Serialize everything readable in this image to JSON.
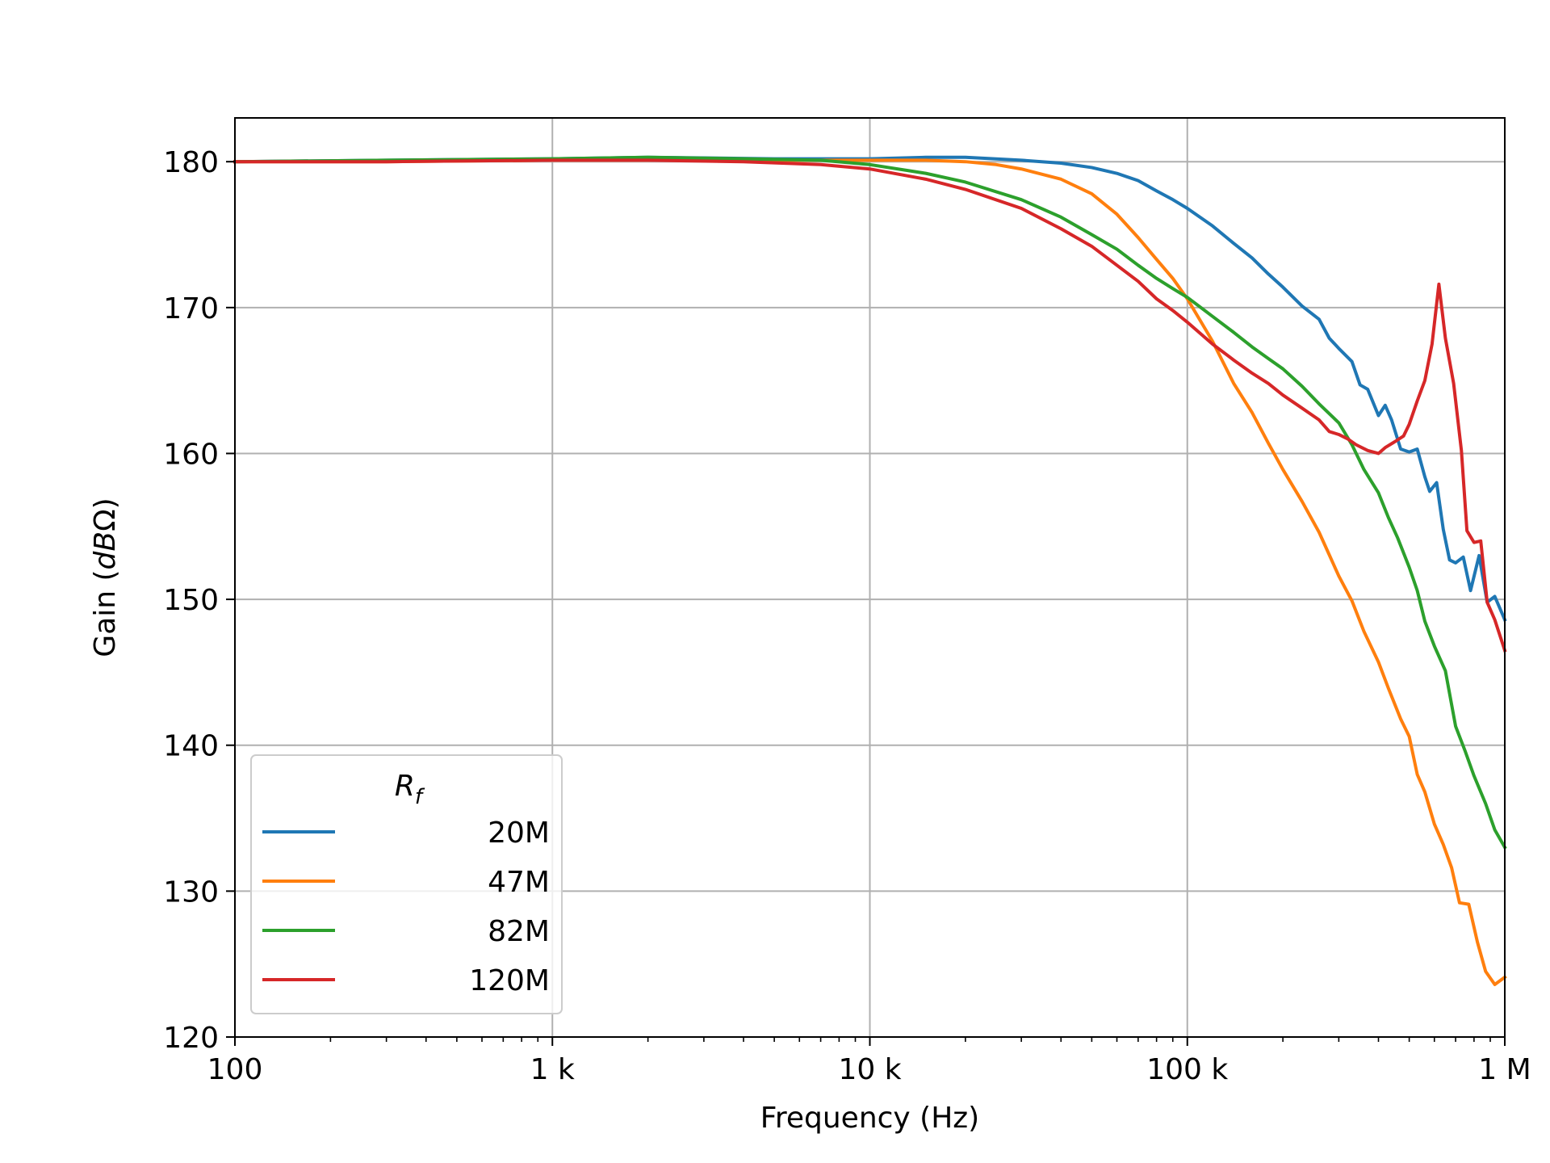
{
  "chart_data": {
    "type": "line",
    "xlabel": "Frequency (Hz)",
    "ylabel": "Gain (dBΩ)",
    "ylabel_parts": {
      "prefix": "Gain (",
      "unit_italic": "dB",
      "unit_tail": "Ω)"
    },
    "xscale": "log",
    "xlim": [
      100,
      1000000
    ],
    "ylim": [
      120,
      183
    ],
    "grid": true,
    "xticks": [
      {
        "value": 100,
        "label": "100"
      },
      {
        "value": 1000,
        "label": "1 k"
      },
      {
        "value": 10000,
        "label": "10 k"
      },
      {
        "value": 100000,
        "label": "100 k"
      },
      {
        "value": 1000000,
        "label": "1 M"
      }
    ],
    "yticks": [
      {
        "value": 120,
        "label": "120"
      },
      {
        "value": 130,
        "label": "130"
      },
      {
        "value": 140,
        "label": "140"
      },
      {
        "value": 150,
        "label": "150"
      },
      {
        "value": 160,
        "label": "160"
      },
      {
        "value": 170,
        "label": "170"
      },
      {
        "value": 180,
        "label": "180"
      }
    ],
    "legend": {
      "title_base": "R",
      "title_sub": "f",
      "placement": "lower-left"
    },
    "series": [
      {
        "name": "20M",
        "color": "#1f77b4",
        "points": [
          [
            100,
            180.0
          ],
          [
            300,
            180.1
          ],
          [
            1000,
            180.2
          ],
          [
            2000,
            180.3
          ],
          [
            5000,
            180.2
          ],
          [
            10000,
            180.2
          ],
          [
            15000,
            180.3
          ],
          [
            20000,
            180.3
          ],
          [
            30000,
            180.1
          ],
          [
            40000,
            179.9
          ],
          [
            50000,
            179.6
          ],
          [
            60000,
            179.2
          ],
          [
            70000,
            178.7
          ],
          [
            80000,
            178.0
          ],
          [
            90000,
            177.4
          ],
          [
            100000,
            176.8
          ],
          [
            120000,
            175.6
          ],
          [
            140000,
            174.4
          ],
          [
            160000,
            173.4
          ],
          [
            180000,
            172.3
          ],
          [
            200000,
            171.4
          ],
          [
            230000,
            170.1
          ],
          [
            260000,
            169.2
          ],
          [
            280000,
            167.9
          ],
          [
            300000,
            167.2
          ],
          [
            330000,
            166.3
          ],
          [
            350000,
            164.7
          ],
          [
            370000,
            164.4
          ],
          [
            400000,
            162.6
          ],
          [
            420000,
            163.3
          ],
          [
            440000,
            162.3
          ],
          [
            470000,
            160.3
          ],
          [
            500000,
            160.1
          ],
          [
            530000,
            160.3
          ],
          [
            560000,
            158.4
          ],
          [
            580000,
            157.4
          ],
          [
            610000,
            158.0
          ],
          [
            640000,
            154.8
          ],
          [
            670000,
            152.7
          ],
          [
            700000,
            152.5
          ],
          [
            740000,
            152.9
          ],
          [
            780000,
            150.6
          ],
          [
            830000,
            153.0
          ],
          [
            880000,
            149.8
          ],
          [
            930000,
            150.2
          ],
          [
            1000000,
            148.6
          ]
        ]
      },
      {
        "name": "47M",
        "color": "#ff7f0e",
        "points": [
          [
            100,
            180.0
          ],
          [
            300,
            180.0
          ],
          [
            1000,
            180.1
          ],
          [
            2000,
            180.1
          ],
          [
            5000,
            180.1
          ],
          [
            10000,
            180.1
          ],
          [
            15000,
            180.1
          ],
          [
            20000,
            180.0
          ],
          [
            25000,
            179.8
          ],
          [
            30000,
            179.5
          ],
          [
            40000,
            178.8
          ],
          [
            50000,
            177.8
          ],
          [
            60000,
            176.4
          ],
          [
            70000,
            174.8
          ],
          [
            80000,
            173.3
          ],
          [
            90000,
            172.0
          ],
          [
            100000,
            170.6
          ],
          [
            120000,
            167.7
          ],
          [
            140000,
            164.8
          ],
          [
            160000,
            162.8
          ],
          [
            180000,
            160.7
          ],
          [
            200000,
            158.9
          ],
          [
            230000,
            156.7
          ],
          [
            260000,
            154.6
          ],
          [
            300000,
            151.6
          ],
          [
            330000,
            149.9
          ],
          [
            360000,
            147.8
          ],
          [
            400000,
            145.7
          ],
          [
            430000,
            143.9
          ],
          [
            470000,
            141.8
          ],
          [
            500000,
            140.6
          ],
          [
            530000,
            138.0
          ],
          [
            560000,
            136.8
          ],
          [
            600000,
            134.6
          ],
          [
            640000,
            133.2
          ],
          [
            680000,
            131.6
          ],
          [
            720000,
            129.2
          ],
          [
            770000,
            129.1
          ],
          [
            820000,
            126.5
          ],
          [
            870000,
            124.5
          ],
          [
            930000,
            123.6
          ],
          [
            1000000,
            124.1
          ]
        ]
      },
      {
        "name": "82M",
        "color": "#2ca02c",
        "points": [
          [
            100,
            180.0
          ],
          [
            300,
            180.1
          ],
          [
            1000,
            180.2
          ],
          [
            2000,
            180.3
          ],
          [
            4000,
            180.2
          ],
          [
            7000,
            180.1
          ],
          [
            10000,
            179.8
          ],
          [
            15000,
            179.2
          ],
          [
            20000,
            178.6
          ],
          [
            30000,
            177.4
          ],
          [
            40000,
            176.2
          ],
          [
            50000,
            175.0
          ],
          [
            60000,
            174.0
          ],
          [
            70000,
            172.9
          ],
          [
            80000,
            172.0
          ],
          [
            90000,
            171.3
          ],
          [
            100000,
            170.7
          ],
          [
            120000,
            169.4
          ],
          [
            140000,
            168.3
          ],
          [
            160000,
            167.3
          ],
          [
            180000,
            166.5
          ],
          [
            200000,
            165.8
          ],
          [
            230000,
            164.6
          ],
          [
            260000,
            163.4
          ],
          [
            300000,
            162.1
          ],
          [
            330000,
            160.6
          ],
          [
            360000,
            158.9
          ],
          [
            400000,
            157.3
          ],
          [
            430000,
            155.6
          ],
          [
            460000,
            154.2
          ],
          [
            500000,
            152.2
          ],
          [
            530000,
            150.6
          ],
          [
            560000,
            148.5
          ],
          [
            600000,
            146.8
          ],
          [
            650000,
            145.1
          ],
          [
            700000,
            141.3
          ],
          [
            750000,
            139.6
          ],
          [
            800000,
            137.9
          ],
          [
            870000,
            136.0
          ],
          [
            930000,
            134.2
          ],
          [
            1000000,
            133.0
          ]
        ]
      },
      {
        "name": "120M",
        "color": "#d62728",
        "points": [
          [
            100,
            180.0
          ],
          [
            300,
            180.0
          ],
          [
            1000,
            180.1
          ],
          [
            2000,
            180.1
          ],
          [
            4000,
            180.0
          ],
          [
            7000,
            179.8
          ],
          [
            10000,
            179.5
          ],
          [
            15000,
            178.8
          ],
          [
            20000,
            178.1
          ],
          [
            30000,
            176.8
          ],
          [
            40000,
            175.4
          ],
          [
            50000,
            174.2
          ],
          [
            60000,
            172.9
          ],
          [
            70000,
            171.8
          ],
          [
            80000,
            170.6
          ],
          [
            90000,
            169.8
          ],
          [
            100000,
            169.0
          ],
          [
            120000,
            167.5
          ],
          [
            140000,
            166.4
          ],
          [
            160000,
            165.5
          ],
          [
            180000,
            164.8
          ],
          [
            200000,
            164.0
          ],
          [
            230000,
            163.1
          ],
          [
            260000,
            162.3
          ],
          [
            280000,
            161.5
          ],
          [
            300000,
            161.3
          ],
          [
            320000,
            161.0
          ],
          [
            340000,
            160.6
          ],
          [
            370000,
            160.2
          ],
          [
            400000,
            160.0
          ],
          [
            420000,
            160.4
          ],
          [
            450000,
            160.8
          ],
          [
            480000,
            161.2
          ],
          [
            500000,
            162.0
          ],
          [
            530000,
            163.6
          ],
          [
            560000,
            165.0
          ],
          [
            590000,
            167.5
          ],
          [
            620000,
            171.6
          ],
          [
            650000,
            167.9
          ],
          [
            690000,
            164.8
          ],
          [
            730000,
            160.2
          ],
          [
            760000,
            154.7
          ],
          [
            800000,
            153.9
          ],
          [
            840000,
            154.0
          ],
          [
            880000,
            149.8
          ],
          [
            930000,
            148.6
          ],
          [
            1000000,
            146.5
          ]
        ]
      }
    ]
  }
}
